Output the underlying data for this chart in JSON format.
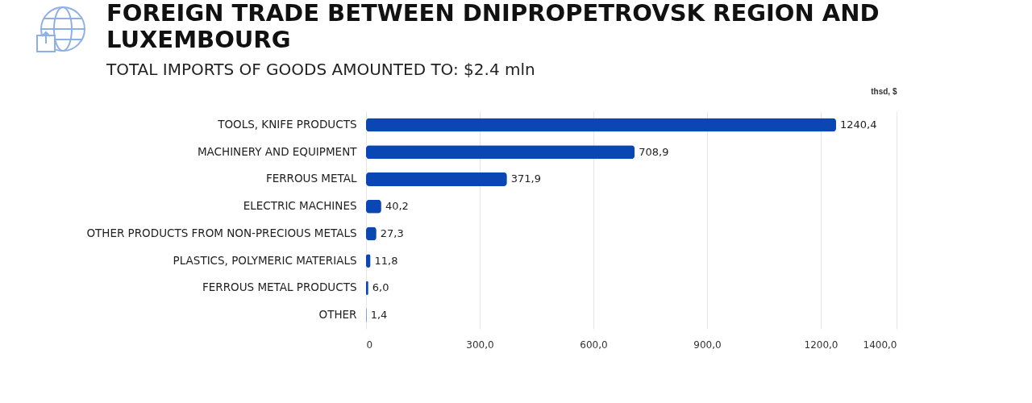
{
  "chart_data": {
    "type": "bar",
    "orientation": "horizontal",
    "title": "FOREIGN TRADE BETWEEN DNIPROPETROVSK REGION AND LUXEMBOURG",
    "subtitle": "TOTAL IMPORTS OF GOODS AMOUNTED TO: $2.4  mln",
    "xlabel": "thsd, $",
    "categories": [
      "TOOLS, KNIFE PRODUCTS",
      "MACHINERY AND EQUIPMENT",
      "FERROUS METAL",
      "ELECTRIC MACHINES",
      "OTHER PRODUCTS FROM NON-PRECIOUS METALS",
      "PLASTICS, POLYMERIC MATERIALS",
      "FERROUS METAL PRODUCTS",
      "OTHER"
    ],
    "values": [
      1240.4,
      708.9,
      371.9,
      40.2,
      27.3,
      11.8,
      6.0,
      1.4
    ],
    "value_labels": [
      "1240,4",
      "708,9",
      "371,9",
      "40,2",
      "27,3",
      "11,8",
      "6,0",
      "1,4"
    ],
    "color": "#0b47b4",
    "xlim": [
      0,
      1400
    ],
    "xticks": [
      0,
      {
        "value": 300,
        "label": "300,0"
      },
      {
        "value": 600,
        "label": "600,0"
      },
      {
        "value": 900,
        "label": "900,0"
      },
      {
        "value": 1200,
        "label": "1200,0"
      },
      {
        "value": 1400,
        "label": "1400,0"
      }
    ],
    "grid": "x"
  }
}
